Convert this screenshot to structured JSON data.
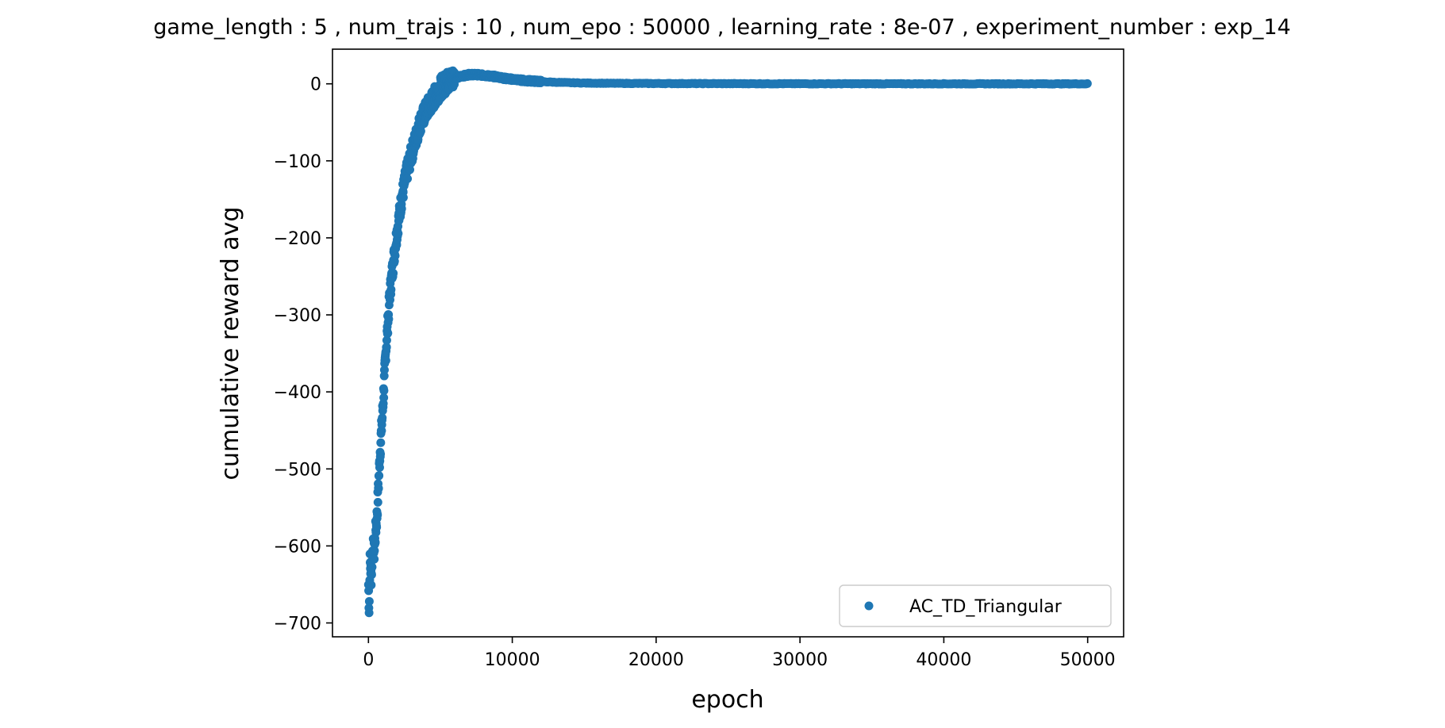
{
  "chart_data": {
    "type": "scatter",
    "title": "game_length : 5 , num_trajs : 10 , num_epo : 50000 , learning_rate : 8e-07 , experiment_number : exp_14",
    "xlabel": "epoch",
    "ylabel": "cumulative reward avg",
    "xlim": [
      -2500,
      52500
    ],
    "ylim": [
      -718,
      45
    ],
    "x_ticks": [
      0,
      10000,
      20000,
      30000,
      40000,
      50000
    ],
    "x_tick_labels": [
      "0",
      "10000",
      "20000",
      "30000",
      "40000",
      "50000"
    ],
    "y_ticks": [
      0,
      -100,
      -200,
      -300,
      -400,
      -500,
      -600,
      -700
    ],
    "y_tick_labels": [
      "0",
      "−100",
      "−200",
      "−300",
      "−400",
      "−500",
      "−600",
      "−700"
    ],
    "grid": false,
    "legend_position": "lower-right",
    "series": [
      {
        "name": "AC_TD_Triangular",
        "color": "#1f77b4",
        "marker": "circle",
        "x": [
          0,
          50,
          100,
          200,
          300,
          400,
          500,
          600,
          700,
          800,
          1000,
          1200,
          1500,
          1800,
          2000,
          2300,
          2600,
          3000,
          3300,
          3600,
          4000,
          4500,
          5000,
          5500,
          6000,
          6500,
          7000,
          7500,
          8000,
          8500,
          9000,
          9500,
          10000,
          11000,
          12000,
          13000,
          14000,
          15000,
          17500,
          20000,
          25000,
          30000,
          35000,
          40000,
          45000,
          50000
        ],
        "y": [
          -650,
          -683,
          -620,
          -640,
          -600,
          -610,
          -580,
          -560,
          -520,
          -480,
          -420,
          -350,
          -270,
          -220,
          -190,
          -150,
          -120,
          -90,
          -70,
          -50,
          -35,
          -20,
          -5,
          3,
          8,
          10,
          12,
          12,
          11,
          10,
          9,
          7,
          6,
          4,
          3,
          2,
          1.5,
          1,
          0.6,
          0.4,
          0.2,
          0.1,
          0.05,
          0.02,
          0.01,
          0
        ]
      }
    ]
  }
}
